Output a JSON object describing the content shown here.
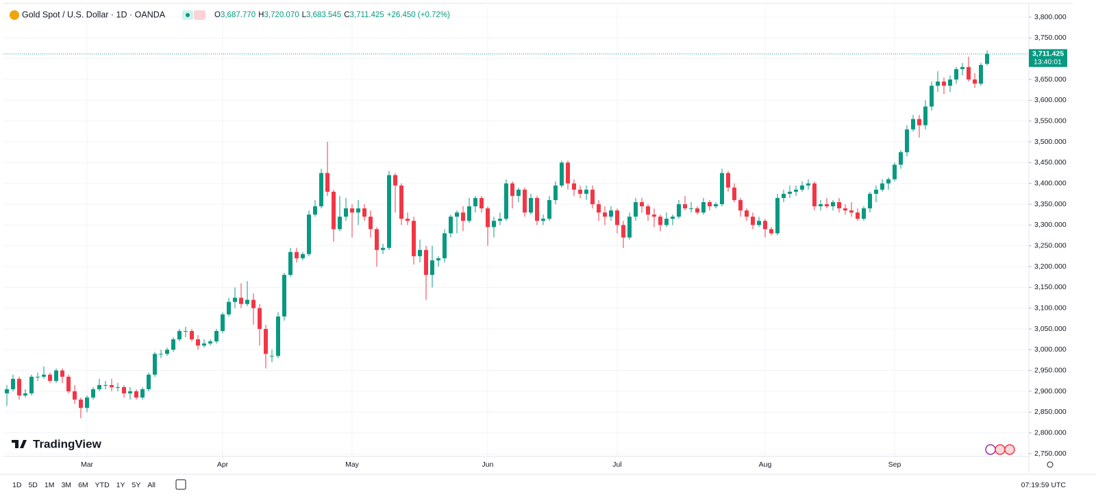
{
  "header": {
    "symbol": "Gold Spot / U.S. Dollar · 1D · OANDA",
    "legend": [
      {
        "key": "O",
        "value": "3,687.770"
      },
      {
        "key": "H",
        "value": "3,720.070"
      },
      {
        "key": "L",
        "value": "3,683.545"
      },
      {
        "key": "C",
        "value": "3,711.425"
      }
    ],
    "change": "+26.450 (+0.72%)"
  },
  "chart_data": {
    "type": "candlestick",
    "up_color": "#089981",
    "down_color": "#f23645",
    "grid": true,
    "ylim": [
      2750,
      3800
    ],
    "yticks": [
      {
        "value": 2750,
        "label": "2,750.000"
      },
      {
        "value": 2800,
        "label": "2,800.000"
      },
      {
        "value": 2850,
        "label": "2,850.000"
      },
      {
        "value": 2900,
        "label": "2,900.000"
      },
      {
        "value": 2950,
        "label": "2,950.000"
      },
      {
        "value": 3000,
        "label": "3,000.000"
      },
      {
        "value": 3050,
        "label": "3,050.000"
      },
      {
        "value": 3100,
        "label": "3,100.000"
      },
      {
        "value": 3150,
        "label": "3,150.000"
      },
      {
        "value": 3200,
        "label": "3,200.000"
      },
      {
        "value": 3250,
        "label": "3,250.000"
      },
      {
        "value": 3300,
        "label": "3,300.000"
      },
      {
        "value": 3350,
        "label": "3,350.000"
      },
      {
        "value": 3400,
        "label": "3,400.000"
      },
      {
        "value": 3450,
        "label": "3,450.000"
      },
      {
        "value": 3500,
        "label": "3,500.000"
      },
      {
        "value": 3550,
        "label": "3,550.000"
      },
      {
        "value": 3600,
        "label": "3,600.000"
      },
      {
        "value": 3650,
        "label": "3,650.000"
      },
      {
        "value": 3700,
        "label": "3,700.000"
      },
      {
        "value": 3750,
        "label": "3,750.000"
      },
      {
        "value": 3800,
        "label": "3,800.000"
      }
    ],
    "last_price": {
      "value": 3711.425,
      "label": "3,711.425"
    },
    "countdown": "13:40:01",
    "categories": [
      null,
      null,
      null,
      null,
      null,
      null,
      null,
      null,
      null,
      null,
      null,
      null,
      null,
      "Mar",
      null,
      null,
      null,
      null,
      null,
      null,
      null,
      null,
      null,
      null,
      null,
      null,
      null,
      null,
      null,
      null,
      null,
      null,
      null,
      null,
      null,
      "Apr",
      null,
      null,
      null,
      null,
      null,
      null,
      null,
      null,
      null,
      null,
      null,
      null,
      null,
      null,
      null,
      null,
      null,
      null,
      null,
      null,
      "May",
      null,
      null,
      null,
      null,
      null,
      null,
      null,
      null,
      null,
      null,
      null,
      null,
      null,
      null,
      null,
      null,
      null,
      null,
      null,
      null,
      null,
      "Jun",
      null,
      null,
      null,
      null,
      null,
      null,
      null,
      null,
      null,
      null,
      null,
      null,
      null,
      null,
      null,
      null,
      null,
      null,
      null,
      null,
      "Jul",
      null,
      null,
      null,
      null,
      null,
      null,
      null,
      null,
      null,
      null,
      null,
      null,
      null,
      null,
      null,
      null,
      null,
      null,
      null,
      null,
      null,
      null,
      null,
      "Aug",
      null,
      null,
      null,
      null,
      null,
      null,
      null,
      null,
      null,
      null,
      null,
      null,
      null,
      null,
      null,
      null,
      null,
      null,
      null,
      null,
      "Sep",
      null,
      null,
      null,
      null,
      null,
      null,
      null,
      null,
      null,
      null,
      null,
      null,
      null,
      null,
      null
    ],
    "ohlc": [
      [
        2895,
        2915,
        2865,
        2905
      ],
      [
        2905,
        2940,
        2900,
        2930
      ],
      [
        2930,
        2935,
        2880,
        2890
      ],
      [
        2890,
        2905,
        2885,
        2895
      ],
      [
        2895,
        2940,
        2890,
        2935
      ],
      [
        2935,
        2945,
        2925,
        2935
      ],
      [
        2935,
        2960,
        2930,
        2940
      ],
      [
        2940,
        2945,
        2920,
        2925
      ],
      [
        2925,
        2955,
        2920,
        2950
      ],
      [
        2950,
        2955,
        2920,
        2935
      ],
      [
        2935,
        2940,
        2895,
        2900
      ],
      [
        2900,
        2915,
        2870,
        2880
      ],
      [
        2880,
        2885,
        2835,
        2860
      ],
      [
        2860,
        2890,
        2850,
        2885
      ],
      [
        2885,
        2910,
        2880,
        2905
      ],
      [
        2905,
        2930,
        2900,
        2915
      ],
      [
        2915,
        2925,
        2905,
        2915
      ],
      [
        2915,
        2930,
        2900,
        2910
      ],
      [
        2910,
        2920,
        2900,
        2910
      ],
      [
        2910,
        2915,
        2885,
        2895
      ],
      [
        2895,
        2910,
        2880,
        2900
      ],
      [
        2900,
        2905,
        2880,
        2885
      ],
      [
        2885,
        2910,
        2880,
        2905
      ],
      [
        2905,
        2945,
        2900,
        2940
      ],
      [
        2940,
        2995,
        2935,
        2990
      ],
      [
        2990,
        3000,
        2980,
        2990
      ],
      [
        2990,
        3005,
        2985,
        3000
      ],
      [
        3000,
        3030,
        2995,
        3025
      ],
      [
        3025,
        3050,
        3020,
        3045
      ],
      [
        3045,
        3055,
        3030,
        3045
      ],
      [
        3045,
        3050,
        3020,
        3025
      ],
      [
        3025,
        3035,
        3000,
        3010
      ],
      [
        3010,
        3025,
        3005,
        3015
      ],
      [
        3015,
        3025,
        3010,
        3020
      ],
      [
        3020,
        3050,
        3015,
        3045
      ],
      [
        3045,
        3090,
        3040,
        3085
      ],
      [
        3085,
        3125,
        3080,
        3115
      ],
      [
        3115,
        3150,
        3100,
        3125
      ],
      [
        3125,
        3160,
        3100,
        3110
      ],
      [
        3110,
        3165,
        3105,
        3120
      ],
      [
        3120,
        3135,
        3060,
        3100
      ],
      [
        3100,
        3110,
        3010,
        3050
      ],
      [
        3050,
        3060,
        2955,
        2990
      ],
      [
        2985,
        3000,
        2970,
        2985
      ],
      [
        2985,
        3090,
        2980,
        3080
      ],
      [
        3080,
        3185,
        3070,
        3180
      ],
      [
        3180,
        3245,
        3175,
        3235
      ],
      [
        3235,
        3245,
        3210,
        3220
      ],
      [
        3220,
        3235,
        3215,
        3230
      ],
      [
        3230,
        3335,
        3225,
        3325
      ],
      [
        3325,
        3360,
        3320,
        3345
      ],
      [
        3345,
        3435,
        3340,
        3425
      ],
      [
        3425,
        3500,
        3370,
        3380
      ],
      [
        3380,
        3385,
        3260,
        3290
      ],
      [
        3290,
        3370,
        3285,
        3320
      ],
      [
        3320,
        3365,
        3310,
        3340
      ],
      [
        3340,
        3350,
        3270,
        3330
      ],
      [
        3330,
        3360,
        3300,
        3340
      ],
      [
        3340,
        3350,
        3310,
        3320
      ],
      [
        3320,
        3335,
        3270,
        3290
      ],
      [
        3290,
        3295,
        3200,
        3240
      ],
      [
        3240,
        3255,
        3230,
        3245
      ],
      [
        3245,
        3430,
        3240,
        3420
      ],
      [
        3420,
        3425,
        3330,
        3395
      ],
      [
        3395,
        3400,
        3300,
        3315
      ],
      [
        3315,
        3330,
        3300,
        3310
      ],
      [
        3310,
        3320,
        3205,
        3225
      ],
      [
        3225,
        3265,
        3210,
        3240
      ],
      [
        3240,
        3250,
        3120,
        3180
      ],
      [
        3180,
        3250,
        3150,
        3215
      ],
      [
        3215,
        3225,
        3200,
        3220
      ],
      [
        3220,
        3290,
        3210,
        3280
      ],
      [
        3280,
        3325,
        3270,
        3320
      ],
      [
        3320,
        3335,
        3280,
        3330
      ],
      [
        3330,
        3345,
        3285,
        3310
      ],
      [
        3310,
        3365,
        3305,
        3345
      ],
      [
        3345,
        3370,
        3330,
        3365
      ],
      [
        3365,
        3370,
        3330,
        3340
      ],
      [
        3340,
        3345,
        3250,
        3295
      ],
      [
        3295,
        3320,
        3270,
        3310
      ],
      [
        3310,
        3330,
        3300,
        3315
      ],
      [
        3315,
        3410,
        3310,
        3400
      ],
      [
        3400,
        3405,
        3340,
        3370
      ],
      [
        3370,
        3390,
        3355,
        3385
      ],
      [
        3385,
        3390,
        3320,
        3330
      ],
      [
        3330,
        3375,
        3325,
        3365
      ],
      [
        3365,
        3370,
        3300,
        3310
      ],
      [
        3310,
        3325,
        3300,
        3315
      ],
      [
        3315,
        3370,
        3310,
        3360
      ],
      [
        3360,
        3405,
        3350,
        3395
      ],
      [
        3395,
        3455,
        3390,
        3450
      ],
      [
        3450,
        3455,
        3385,
        3400
      ],
      [
        3400,
        3410,
        3370,
        3385
      ],
      [
        3385,
        3395,
        3365,
        3375
      ],
      [
        3375,
        3395,
        3360,
        3385
      ],
      [
        3385,
        3395,
        3340,
        3350
      ],
      [
        3350,
        3360,
        3310,
        3330
      ],
      [
        3330,
        3345,
        3300,
        3320
      ],
      [
        3320,
        3345,
        3310,
        3335
      ],
      [
        3335,
        3340,
        3280,
        3300
      ],
      [
        3300,
        3310,
        3245,
        3270
      ],
      [
        3270,
        3330,
        3265,
        3320
      ],
      [
        3320,
        3365,
        3310,
        3355
      ],
      [
        3355,
        3365,
        3330,
        3345
      ],
      [
        3345,
        3350,
        3310,
        3325
      ],
      [
        3325,
        3340,
        3295,
        3320
      ],
      [
        3320,
        3325,
        3285,
        3300
      ],
      [
        3300,
        3330,
        3295,
        3315
      ],
      [
        3315,
        3325,
        3300,
        3320
      ],
      [
        3320,
        3360,
        3315,
        3350
      ],
      [
        3350,
        3370,
        3335,
        3340
      ],
      [
        3340,
        3355,
        3330,
        3340
      ],
      [
        3340,
        3345,
        3325,
        3330
      ],
      [
        3330,
        3365,
        3325,
        3355
      ],
      [
        3355,
        3360,
        3335,
        3345
      ],
      [
        3345,
        3355,
        3340,
        3350
      ],
      [
        3350,
        3435,
        3345,
        3425
      ],
      [
        3425,
        3430,
        3380,
        3390
      ],
      [
        3390,
        3400,
        3355,
        3360
      ],
      [
        3360,
        3365,
        3320,
        3335
      ],
      [
        3335,
        3340,
        3310,
        3320
      ],
      [
        3320,
        3330,
        3290,
        3300
      ],
      [
        3300,
        3320,
        3295,
        3310
      ],
      [
        3310,
        3315,
        3270,
        3290
      ],
      [
        3290,
        3295,
        3275,
        3280
      ],
      [
        3280,
        3375,
        3275,
        3365
      ],
      [
        3365,
        3385,
        3355,
        3375
      ],
      [
        3375,
        3395,
        3365,
        3380
      ],
      [
        3380,
        3395,
        3370,
        3385
      ],
      [
        3385,
        3405,
        3380,
        3395
      ],
      [
        3395,
        3410,
        3385,
        3400
      ],
      [
        3400,
        3405,
        3335,
        3345
      ],
      [
        3345,
        3360,
        3335,
        3350
      ],
      [
        3350,
        3365,
        3340,
        3345
      ],
      [
        3345,
        3360,
        3335,
        3355
      ],
      [
        3355,
        3365,
        3330,
        3340
      ],
      [
        3340,
        3350,
        3325,
        3335
      ],
      [
        3335,
        3355,
        3320,
        3330
      ],
      [
        3330,
        3340,
        3310,
        3315
      ],
      [
        3315,
        3345,
        3310,
        3340
      ],
      [
        3340,
        3380,
        3330,
        3375
      ],
      [
        3375,
        3395,
        3355,
        3385
      ],
      [
        3385,
        3410,
        3380,
        3400
      ],
      [
        3400,
        3415,
        3385,
        3410
      ],
      [
        3410,
        3450,
        3405,
        3445
      ],
      [
        3445,
        3480,
        3435,
        3475
      ],
      [
        3475,
        3540,
        3465,
        3530
      ],
      [
        3530,
        3565,
        3525,
        3555
      ],
      [
        3555,
        3565,
        3510,
        3540
      ],
      [
        3540,
        3600,
        3530,
        3585
      ],
      [
        3585,
        3645,
        3575,
        3635
      ],
      [
        3635,
        3670,
        3620,
        3645
      ],
      [
        3645,
        3655,
        3615,
        3635
      ],
      [
        3635,
        3660,
        3620,
        3650
      ],
      [
        3650,
        3680,
        3640,
        3675
      ],
      [
        3675,
        3690,
        3660,
        3680
      ],
      [
        3680,
        3705,
        3645,
        3650
      ],
      [
        3650,
        3665,
        3630,
        3640
      ],
      [
        3640,
        3690,
        3635,
        3685
      ],
      [
        3687.77,
        3720.07,
        3683.545,
        3711.425
      ]
    ]
  },
  "branding": "TradingView",
  "toolbar": {
    "ranges": [
      "1D",
      "5D",
      "1M",
      "3M",
      "6M",
      "YTD",
      "1Y",
      "5Y",
      "All"
    ],
    "clock": "07:19:59 UTC"
  }
}
